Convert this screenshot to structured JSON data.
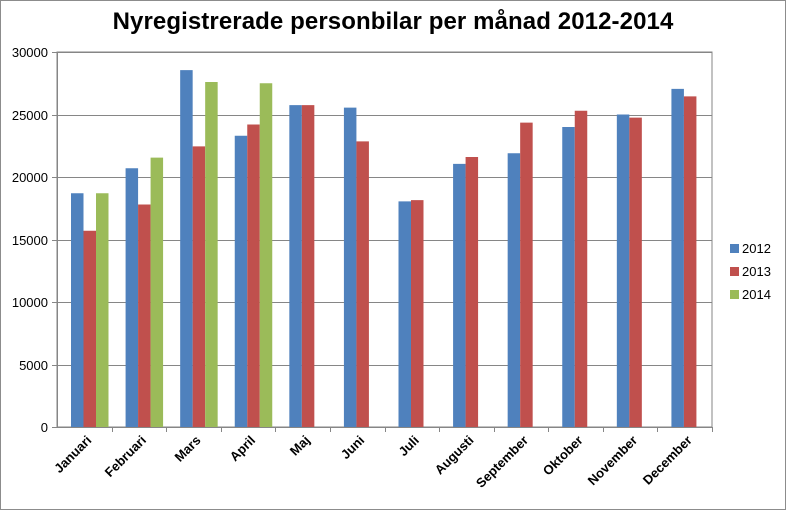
{
  "chart_data": {
    "type": "bar",
    "title": "Nyregistrerade personbilar per månad 2012-2014",
    "xlabel": "",
    "ylabel": "",
    "ylim": [
      0,
      30000
    ],
    "yticks": [
      "0",
      "5000",
      "10000",
      "15000",
      "20000",
      "25000",
      "30000"
    ],
    "grid": true,
    "legend": "right",
    "categories": [
      "Januari",
      "Februari",
      "Mars",
      "April",
      "Maj",
      "Juni",
      "Juli",
      "Augusti",
      "September",
      "Oktober",
      "November",
      "December"
    ],
    "series": [
      {
        "name": "2012",
        "color": "#4f81bd",
        "values": [
          18700,
          20700,
          28550,
          23300,
          25750,
          25550,
          18050,
          21050,
          21900,
          24000,
          25000,
          27050
        ]
      },
      {
        "name": "2013",
        "color": "#c0504d",
        "values": [
          15700,
          17800,
          22450,
          24200,
          25750,
          22850,
          18150,
          21600,
          24350,
          25300,
          24750,
          26450
        ]
      },
      {
        "name": "2014",
        "color": "#9bbb59",
        "values": [
          18700,
          21550,
          27600,
          27500,
          null,
          null,
          null,
          null,
          null,
          null,
          null,
          null
        ]
      }
    ]
  }
}
